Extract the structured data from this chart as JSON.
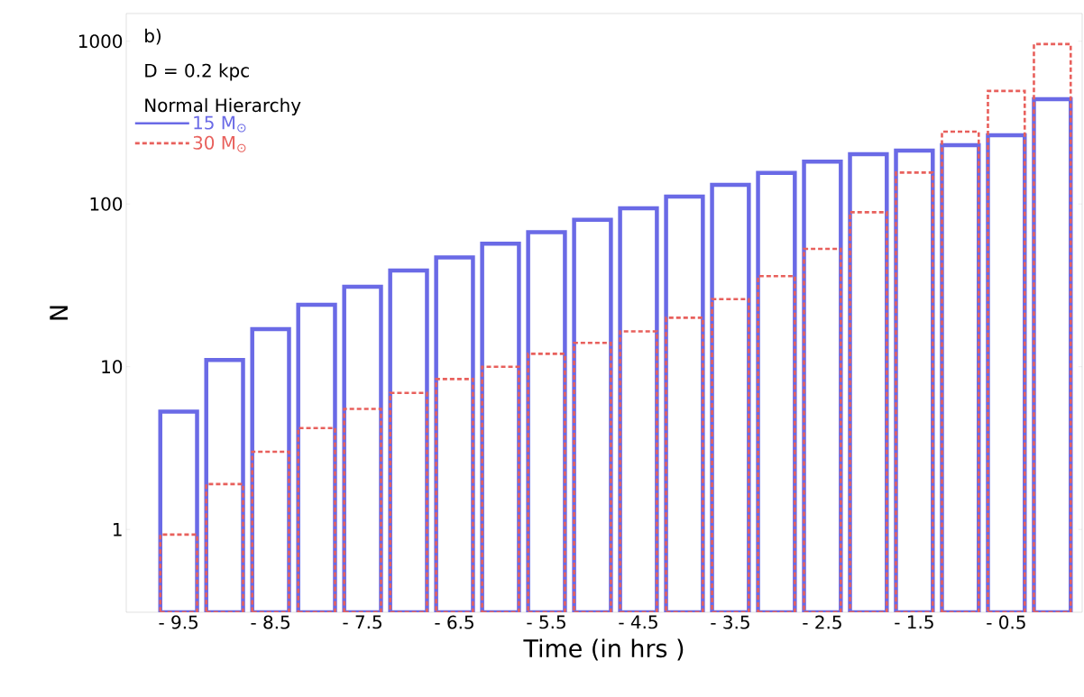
{
  "chart_data": {
    "type": "bar",
    "xlabel": "Time  (in hrs )",
    "ylabel": "N",
    "annotations": [
      "b)",
      "D = 0.2 kpc",
      "Normal Hierarchy"
    ],
    "categories": [
      "- 9.5",
      null,
      "- 8.5",
      null,
      "- 7.5",
      null,
      "- 6.5",
      null,
      "- 5.5",
      null,
      "- 4.5",
      null,
      "- 3.5",
      null,
      "- 2.5",
      null,
      "- 1.5",
      null,
      "- 0.5",
      null
    ],
    "series": [
      {
        "name": "15 M$_{⊙}$",
        "color": "#6a6ae6",
        "line_style": "solid",
        "values": [
          5.3,
          11,
          17,
          24,
          31,
          39,
          47,
          57,
          67,
          80,
          94,
          111,
          131,
          155,
          182,
          202,
          213,
          230,
          264,
          441
        ]
      },
      {
        "name": "30 M$_{⊙}$",
        "color": "#e8605c",
        "line_style": "dashed",
        "values": [
          0.93,
          1.9,
          3.0,
          4.2,
          5.5,
          6.9,
          8.4,
          10,
          12,
          14,
          16.5,
          20,
          26,
          36,
          53,
          89,
          156,
          278,
          495,
          960
        ]
      }
    ],
    "log": true,
    "ylim": [
      0.31,
      1480
    ],
    "yticks": [
      1,
      10,
      100,
      1000
    ],
    "legend": "top left",
    "grid": false
  }
}
